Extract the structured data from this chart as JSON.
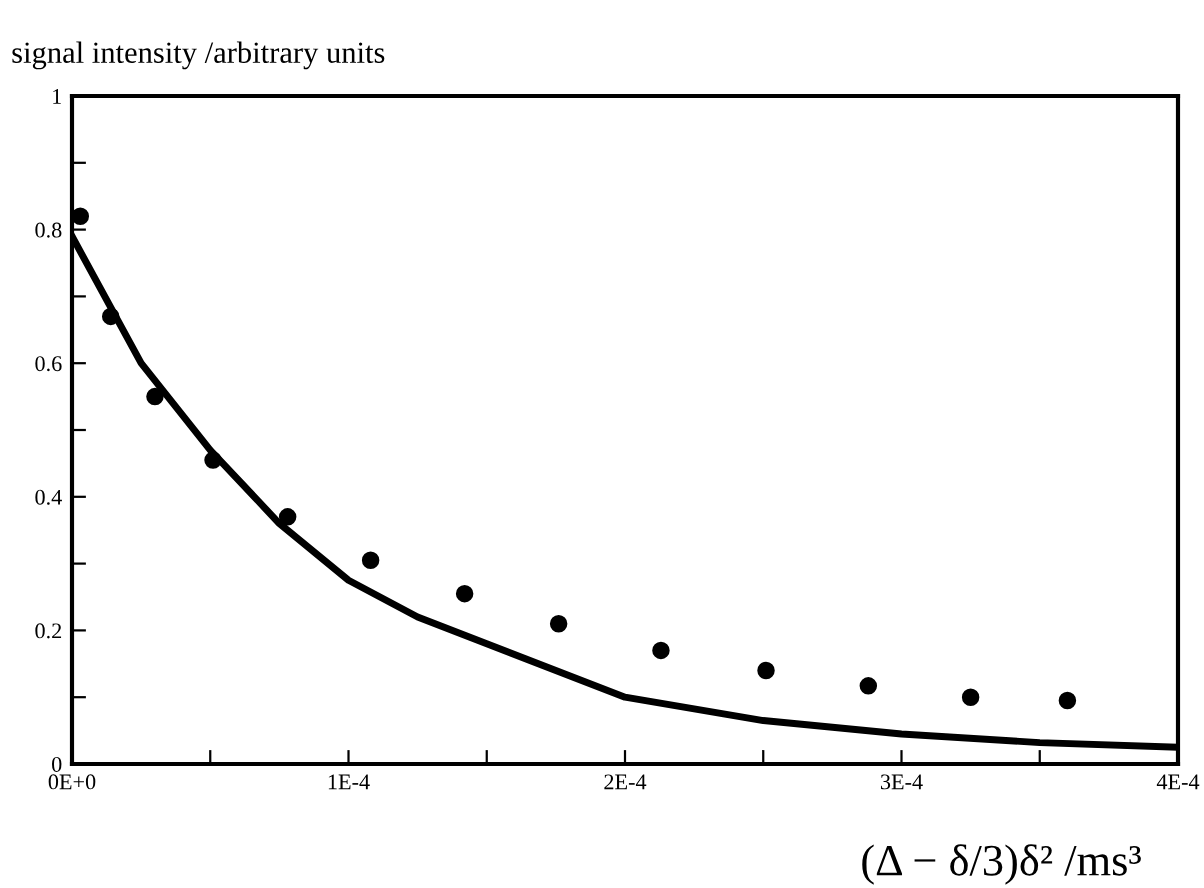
{
  "chart_data": {
    "type": "scatter",
    "ylabel": "signal intensity /arbitrary units",
    "xlabel": "(Δ − δ/3)δ² /ms³",
    "xlim": [
      0,
      0.0004
    ],
    "ylim": [
      0,
      1
    ],
    "xticks": [
      {
        "value": 0,
        "label": "0E+0"
      },
      {
        "value": 5e-05,
        "label": null
      },
      {
        "value": 0.0001,
        "label": "1E-4"
      },
      {
        "value": 0.00015,
        "label": null
      },
      {
        "value": 0.0002,
        "label": "2E-4"
      },
      {
        "value": 0.00025,
        "label": null
      },
      {
        "value": 0.0003,
        "label": "3E-4"
      },
      {
        "value": 0.00035,
        "label": null
      },
      {
        "value": 0.0004,
        "label": "4E-4"
      }
    ],
    "yticks": [
      0,
      {
        "value": 0.1,
        "label": null
      },
      0.2,
      {
        "value": 0.3,
        "label": null
      },
      0.4,
      {
        "value": 0.5,
        "label": null
      },
      0.6,
      {
        "value": 0.7,
        "label": null
      },
      0.8,
      {
        "value": 0.9,
        "label": null
      },
      1
    ],
    "grid": false,
    "legend": false,
    "series": [
      {
        "color": "#000000",
        "marker": "circle",
        "x": [
          3e-06,
          1.4e-05,
          3e-05,
          5.1e-05,
          7.8e-05,
          0.000108,
          0.000142,
          0.000176,
          0.000213,
          0.000251,
          0.000288,
          0.000325,
          0.00036
        ],
        "values": [
          0.82,
          0.67,
          0.55,
          0.455,
          0.37,
          0.305,
          0.255,
          0.21,
          0.17,
          0.14,
          0.117,
          0.1,
          0.095
        ]
      },
      {
        "type": "line",
        "color": "#000000",
        "marker": "none",
        "line_style": "solid",
        "x": [
          0,
          2.5e-05,
          5e-05,
          7.5e-05,
          0.0001,
          0.000125,
          0.00015,
          0.0002,
          0.00025,
          0.0003,
          0.00035,
          0.0004
        ],
        "values": [
          0.79,
          0.6,
          0.47,
          0.36,
          0.275,
          0.22,
          0.18,
          0.1,
          0.065,
          0.045,
          0.032,
          0.025
        ]
      }
    ]
  }
}
